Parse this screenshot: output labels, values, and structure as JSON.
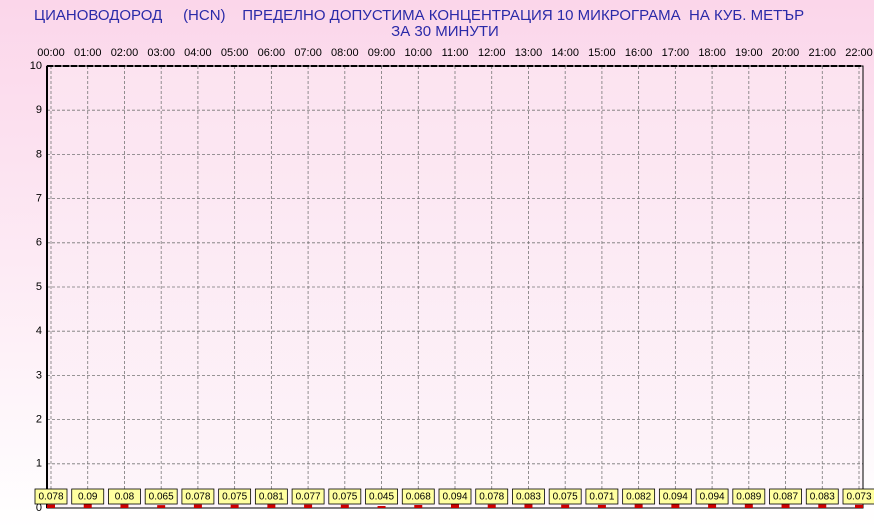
{
  "chart_data": {
    "type": "bar",
    "title": "ЦИАНОВОДОРОД     (HCN)    ПРЕДЕЛНО ДОПУСТИМА КОНЦЕНТРАЦИЯ 10 МИКРОГРАМА  НА КУБ. МЕТЪР",
    "subtitle": "ЗА 30 МИНУТИ",
    "categories": [
      "00:00",
      "01:00",
      "02:00",
      "03:00",
      "04:00",
      "05:00",
      "06:00",
      "07:00",
      "08:00",
      "09:00",
      "10:00",
      "11:00",
      "12:00",
      "13:00",
      "14:00",
      "15:00",
      "16:00",
      "17:00",
      "18:00",
      "19:00",
      "20:00",
      "21:00",
      "22:00"
    ],
    "values": [
      0.078,
      0.09,
      0.08,
      0.065,
      0.078,
      0.075,
      0.081,
      0.077,
      0.075,
      0.045,
      0.068,
      0.094,
      0.078,
      0.083,
      0.075,
      0.071,
      0.082,
      0.094,
      0.094,
      0.089,
      0.087,
      0.083,
      0.073
    ],
    "color": "#cc0000",
    "ylim": [
      0,
      10
    ],
    "yticks": [
      0,
      1,
      2,
      3,
      4,
      5,
      6,
      7,
      8,
      9,
      10
    ],
    "grid": true
  }
}
